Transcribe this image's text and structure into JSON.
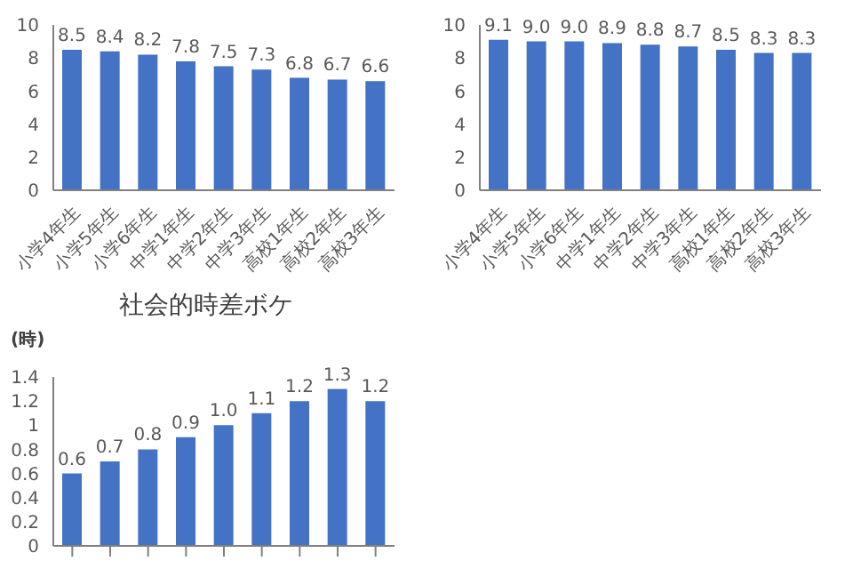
{
  "chart_data": [
    {
      "type": "bar",
      "categories": [
        "小学4年生",
        "小学5年生",
        "小学6年生",
        "中学1年生",
        "中学2年生",
        "中学3年生",
        "高校1年生",
        "高校2年生",
        "高校3年生"
      ],
      "color": "#4472c4",
      "values": [
        8.5,
        8.4,
        8.2,
        7.8,
        7.5,
        7.3,
        6.8,
        6.7,
        6.6
      ],
      "value_labels": [
        "8.5",
        "8.4",
        "8.2",
        "7.8",
        "7.5",
        "7.3",
        "6.8",
        "6.7",
        "6.6"
      ],
      "ylim": [
        0,
        10
      ],
      "yticks": [
        0,
        2,
        4,
        6,
        8,
        10
      ],
      "grid": false,
      "legend": false
    },
    {
      "type": "bar",
      "categories": [
        "小学4年生",
        "小学5年生",
        "小学6年生",
        "中学1年生",
        "中学2年生",
        "中学3年生",
        "高校1年生",
        "高校2年生",
        "高校3年生"
      ],
      "color": "#4472c4",
      "values": [
        9.1,
        9.0,
        9.0,
        8.9,
        8.8,
        8.7,
        8.5,
        8.3,
        8.3
      ],
      "value_labels": [
        "9.1",
        "9.0",
        "9.0",
        "8.9",
        "8.8",
        "8.7",
        "8.5",
        "8.3",
        "8.3"
      ],
      "ylim": [
        0,
        10
      ],
      "yticks": [
        0,
        2,
        4,
        6,
        8,
        10
      ],
      "grid": false,
      "legend": false
    },
    {
      "type": "bar",
      "title": "社会的時差ボケ",
      "ylabel": "(時)",
      "categories": [
        null,
        null,
        null,
        null,
        null,
        null,
        null,
        null,
        null
      ],
      "color": "#4472c4",
      "values": [
        0.6,
        0.7,
        0.8,
        0.9,
        1.0,
        1.1,
        1.2,
        1.3,
        1.2
      ],
      "value_labels": [
        "0.6",
        "0.7",
        "0.8",
        "0.9",
        "1.0",
        "1.1",
        "1.2",
        "1.3",
        "1.2"
      ],
      "ylim": [
        0,
        1.4
      ],
      "yticks": [
        0,
        0.2,
        0.4,
        0.6,
        0.8,
        1,
        1.2,
        1.4
      ],
      "grid": false,
      "legend": false
    }
  ]
}
